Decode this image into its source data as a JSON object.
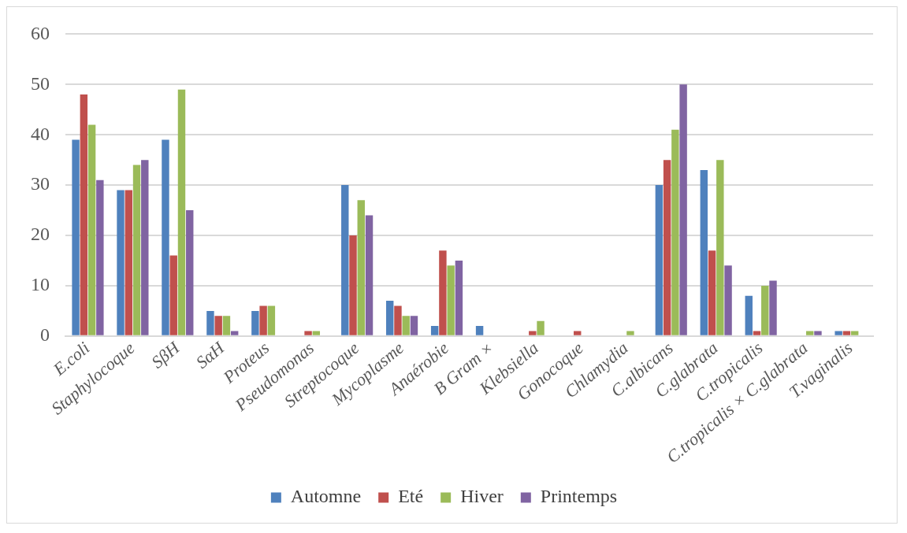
{
  "chart_data": {
    "type": "bar",
    "categories": [
      "E.coli",
      "Staphylocoque",
      "SβH",
      "SαH",
      "Proteus",
      "Pseudomonas",
      "Streptocoque",
      "Mycoplasme",
      "Anaérobie",
      "B Gram ×",
      "Klebsiella",
      "Gonocoque",
      "Chlamydia",
      "C.albicans",
      "C.glabrata",
      "C.tropicalis",
      "C.tropicalis × C.glabrata",
      "T.vaginalis"
    ],
    "series": [
      {
        "name": "Automne",
        "color": "#4f81bd",
        "values": [
          39,
          29,
          39,
          5,
          5,
          0,
          30,
          7,
          2,
          2,
          0,
          0,
          0,
          30,
          33,
          8,
          0,
          1
        ]
      },
      {
        "name": "Eté",
        "color": "#c0504d",
        "values": [
          48,
          29,
          16,
          4,
          6,
          1,
          20,
          6,
          17,
          0,
          1,
          1,
          0,
          35,
          17,
          1,
          0,
          1
        ]
      },
      {
        "name": "Hiver",
        "color": "#9bbb59",
        "values": [
          42,
          34,
          49,
          4,
          6,
          1,
          27,
          4,
          14,
          0,
          3,
          0,
          1,
          41,
          35,
          10,
          1,
          1
        ]
      },
      {
        "name": "Printemps",
        "color": "#8064a2",
        "values": [
          31,
          35,
          25,
          1,
          0,
          0,
          24,
          4,
          15,
          0,
          0,
          0,
          0,
          50,
          14,
          11,
          1,
          0
        ]
      }
    ],
    "ylim": [
      0,
      60
    ],
    "yticks": [
      0,
      10,
      20,
      30,
      40,
      50,
      60
    ],
    "grid": "y",
    "legend": "bottom"
  }
}
